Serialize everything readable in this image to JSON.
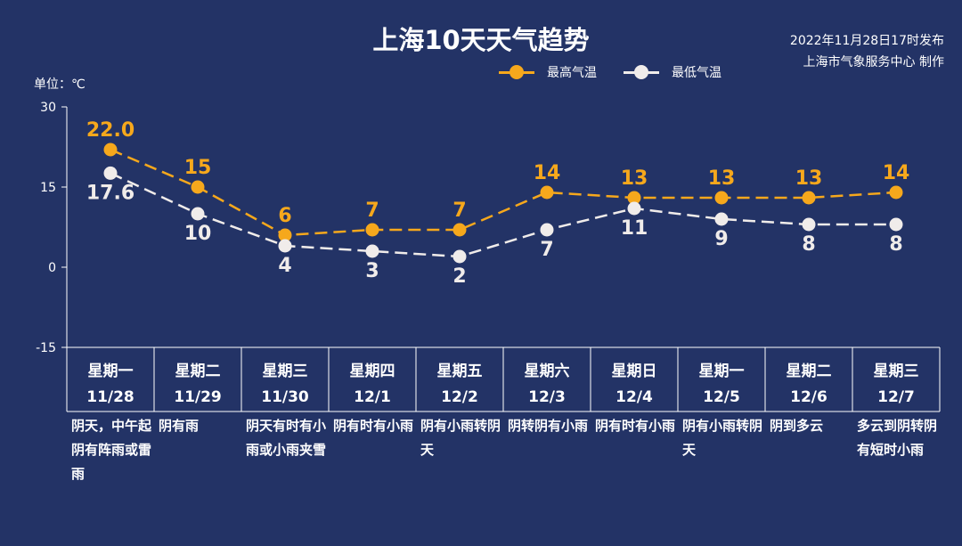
{
  "title": "上海10天天气趋势",
  "publish": {
    "line1": "2022年11月28日17时发布",
    "line2": "上海市气象服务中心 制作"
  },
  "unit_label": "单位：℃",
  "colors": {
    "background": "#233366",
    "high": "#f6a81c",
    "low": "#f0ecea"
  },
  "chart_data": {
    "type": "line",
    "title": "上海10天天气趋势",
    "ylabel": "单位：℃",
    "ylim": [
      -15,
      30
    ],
    "yticks": [
      "30",
      "15",
      "0",
      "-15"
    ],
    "grid": false,
    "legend": "top-right",
    "categories": [
      {
        "weekday": "星期一",
        "date": "11/28"
      },
      {
        "weekday": "星期二",
        "date": "11/29"
      },
      {
        "weekday": "星期三",
        "date": "11/30"
      },
      {
        "weekday": "星期四",
        "date": "12/1"
      },
      {
        "weekday": "星期五",
        "date": "12/2"
      },
      {
        "weekday": "星期六",
        "date": "12/3"
      },
      {
        "weekday": "星期日",
        "date": "12/4"
      },
      {
        "weekday": "星期一",
        "date": "12/5"
      },
      {
        "weekday": "星期二",
        "date": "12/6"
      },
      {
        "weekday": "星期三",
        "date": "12/7"
      }
    ],
    "series": [
      {
        "name": "最高气温",
        "values": [
          22.0,
          15,
          6,
          7,
          7,
          14,
          13,
          13,
          13,
          14
        ],
        "labels": [
          "22.0",
          "15",
          "6",
          "7",
          "7",
          "14",
          "13",
          "13",
          "13",
          "14"
        ]
      },
      {
        "name": "最低气温",
        "values": [
          17.6,
          10,
          4,
          3,
          2,
          7,
          11,
          9,
          8,
          8
        ],
        "labels": [
          "17.6",
          "10",
          "4",
          "3",
          "2",
          "7",
          "11",
          "9",
          "8",
          "8"
        ]
      }
    ]
  },
  "weather": [
    "阴天，中午起阴有阵雨或雷雨",
    "阴有雨",
    "阴天有时有小雨或小雨夹雪",
    "阴有时有小雨",
    "阴有小雨转阴天",
    "阴转阴有小雨",
    "阴有时有小雨",
    "阴有小雨转阴天",
    "阴到多云",
    "多云到阴转阴有短时小雨"
  ]
}
